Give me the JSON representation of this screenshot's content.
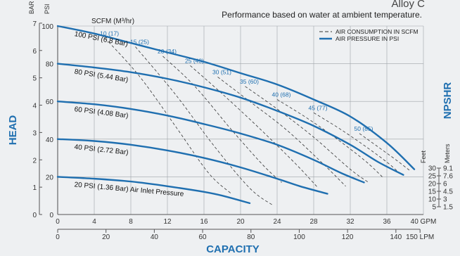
{
  "header_fragment": "Alloy C",
  "note": "Performance based on water at ambient temperature.",
  "legend": {
    "air": "AIR CONSUMPTION IN SCFM",
    "pressure": "AIR PRESSURE IN PSI"
  },
  "colors": {
    "blue": "#1f6fb0",
    "dash": "#333333",
    "grid": "#9ea3a8",
    "background": "#eef0f2"
  },
  "chart_data": {
    "type": "line",
    "title": "",
    "xlabel": "CAPACITY",
    "ylabel": "HEAD",
    "right_label": "NPSHR",
    "x_gpm_ticks": [
      "0",
      "4",
      "8",
      "12",
      "16",
      "20",
      "24",
      "28",
      "32",
      "36",
      "40 GPM"
    ],
    "x_lpm_ticks": [
      "0",
      "20",
      "40",
      "60",
      "80",
      "100",
      "120",
      "140",
      "150 LPM"
    ],
    "x_lpm_values": [
      0,
      20,
      40,
      60,
      80,
      100,
      120,
      140,
      150
    ],
    "psi_unit": "PSI",
    "bar_unit": "BAR",
    "psi_ticks": [
      0,
      20,
      40,
      60,
      80,
      100
    ],
    "bar_ticks": [
      0,
      1,
      2,
      3,
      4,
      5,
      6,
      7
    ],
    "xlim_gpm": [
      0,
      40
    ],
    "ylim_psi": [
      0,
      100
    ],
    "scfm_header": "SCFM (M³/hr)",
    "pressure_curves": [
      {
        "label": "100 PSI (6.8 Bar)",
        "points": [
          [
            0,
            100
          ],
          [
            4,
            96
          ],
          [
            8,
            91
          ],
          [
            12,
            86
          ],
          [
            16,
            81
          ],
          [
            20,
            75
          ],
          [
            24,
            69
          ],
          [
            28,
            61
          ],
          [
            32,
            52
          ],
          [
            36,
            38
          ],
          [
            39,
            24
          ]
        ]
      },
      {
        "label": "80 PSI (5.44 Bar)",
        "points": [
          [
            0,
            80
          ],
          [
            4,
            78
          ],
          [
            8,
            75.5
          ],
          [
            12,
            72
          ],
          [
            16,
            67.5
          ],
          [
            20,
            62
          ],
          [
            24,
            55
          ],
          [
            28,
            47
          ],
          [
            32,
            37
          ],
          [
            35,
            28
          ],
          [
            37.8,
            21
          ]
        ]
      },
      {
        "label": "60 PSI (4.08 Bar)",
        "points": [
          [
            0,
            60
          ],
          [
            4,
            58.5
          ],
          [
            8,
            56
          ],
          [
            12,
            52.5
          ],
          [
            16,
            48
          ],
          [
            20,
            43
          ],
          [
            24,
            37
          ],
          [
            28,
            29
          ],
          [
            31,
            22
          ],
          [
            33.5,
            17
          ]
        ]
      },
      {
        "label": "40 PSI (2.72 Bar)",
        "points": [
          [
            0,
            40
          ],
          [
            4,
            39
          ],
          [
            8,
            37
          ],
          [
            12,
            34
          ],
          [
            16,
            30
          ],
          [
            20,
            25
          ],
          [
            24,
            19
          ],
          [
            26.5,
            15
          ],
          [
            29.5,
            11
          ]
        ]
      },
      {
        "label": "20 PSI (1.36 Bar) Air Inlet Pressure",
        "points": [
          [
            0,
            20
          ],
          [
            4,
            19
          ],
          [
            8,
            17.5
          ],
          [
            12,
            15
          ],
          [
            16,
            12
          ],
          [
            18,
            10
          ],
          [
            21,
            6
          ]
        ]
      }
    ],
    "air_consumption": [
      {
        "label": "10 (17)",
        "points": [
          [
            5.2,
            93.5
          ],
          [
            9,
            73
          ],
          [
            13,
            46
          ],
          [
            16.5,
            22
          ],
          [
            19,
            11
          ]
        ]
      },
      {
        "label": "15 (25)",
        "points": [
          [
            8.5,
            89
          ],
          [
            13,
            63
          ],
          [
            17,
            37
          ],
          [
            21,
            14
          ],
          [
            23.5,
            5
          ]
        ]
      },
      {
        "label": "20 (34)",
        "points": [
          [
            11.5,
            84
          ],
          [
            15,
            68
          ],
          [
            19,
            45
          ],
          [
            22.5,
            26
          ],
          [
            24.5,
            17
          ]
        ]
      },
      {
        "label": "25 (43)",
        "points": [
          [
            14.5,
            79
          ],
          [
            18,
            64
          ],
          [
            22,
            46
          ],
          [
            26,
            27
          ],
          [
            28.5,
            14
          ]
        ]
      },
      {
        "label": "30 (51)",
        "points": [
          [
            17.5,
            73
          ],
          [
            21,
            60
          ],
          [
            25,
            45
          ],
          [
            29,
            27
          ],
          [
            31.5,
            15
          ]
        ]
      },
      {
        "label": "35 (60)",
        "points": [
          [
            20.5,
            68
          ],
          [
            24,
            56
          ],
          [
            28,
            41
          ],
          [
            32,
            24
          ],
          [
            34,
            17
          ]
        ]
      },
      {
        "label": "40 (68)",
        "points": [
          [
            24,
            61
          ],
          [
            27,
            52
          ],
          [
            30,
            42
          ],
          [
            33.5,
            29
          ],
          [
            35.5,
            20
          ]
        ]
      },
      {
        "label": "45 (77)",
        "points": [
          [
            28,
            54
          ],
          [
            31,
            45
          ],
          [
            34,
            35
          ],
          [
            36.2,
            27
          ],
          [
            37.6,
            21
          ]
        ]
      },
      {
        "label": "50 (85)",
        "points": [
          [
            33,
            43
          ],
          [
            35,
            36
          ],
          [
            37,
            29
          ],
          [
            38.6,
            23
          ]
        ]
      }
    ],
    "npshr_units": [
      "Feet",
      "Meters"
    ],
    "npshr_feet": [
      30,
      25,
      20,
      15,
      10,
      5
    ],
    "npshr_meters": [
      9.1,
      7.6,
      6,
      4.5,
      3,
      1.5
    ],
    "legend_position": "top-right"
  }
}
